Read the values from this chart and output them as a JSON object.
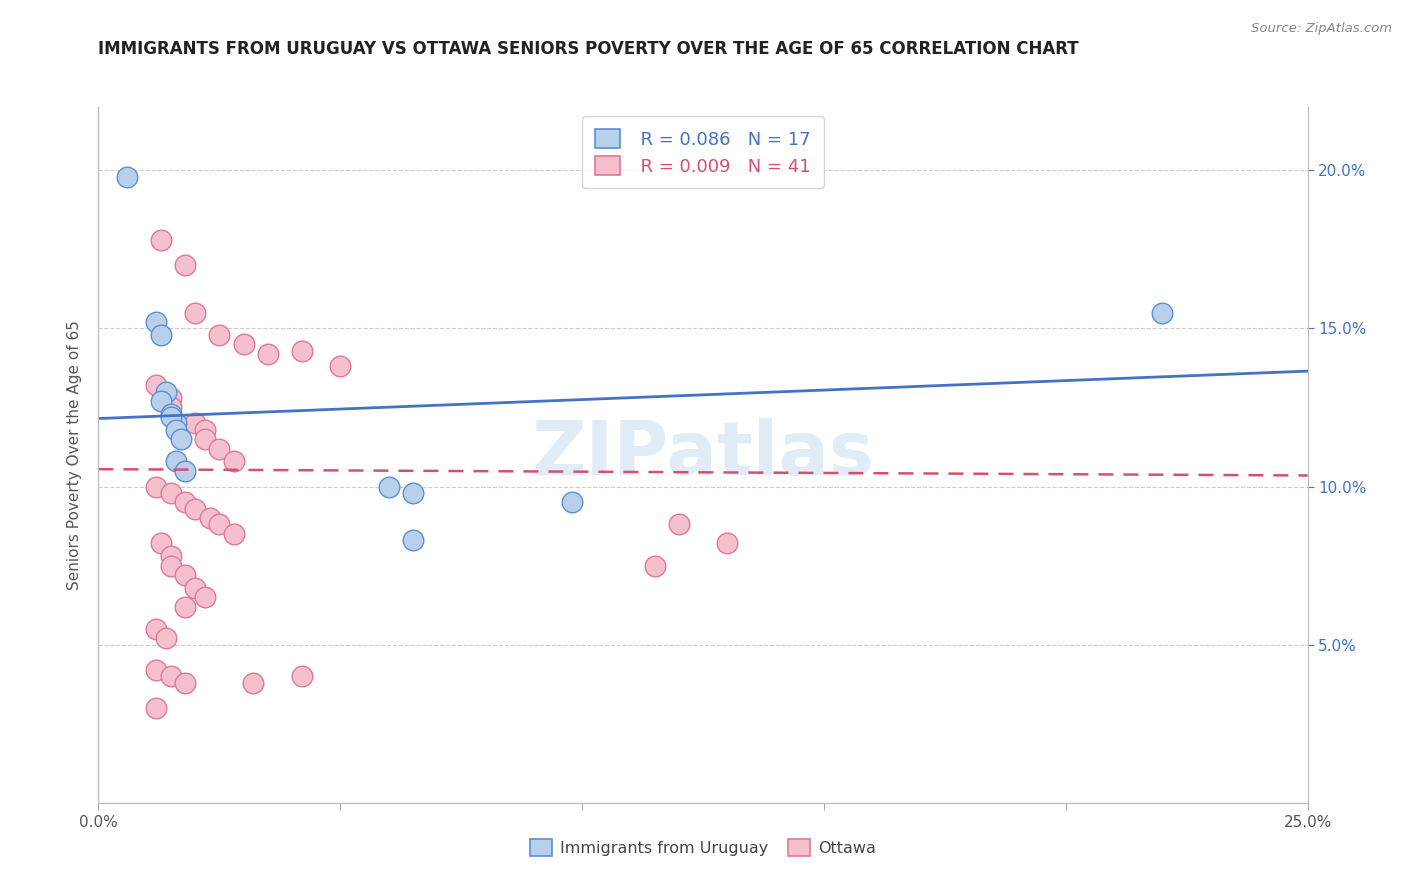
{
  "title": "IMMIGRANTS FROM URUGUAY VS OTTAWA SENIORS POVERTY OVER THE AGE OF 65 CORRELATION CHART",
  "source_text": "Source: ZipAtlas.com",
  "ylabel": "Seniors Poverty Over the Age of 65",
  "xlim": [
    0.0,
    0.25
  ],
  "ylim": [
    0.0,
    0.22
  ],
  "legend_blue_r": "R = 0.086",
  "legend_blue_n": "N = 17",
  "legend_pink_r": "R = 0.009",
  "legend_pink_n": "N = 41",
  "watermark": "ZIPatlas",
  "blue_fill": "#b8d0ea",
  "pink_fill": "#f5c0ce",
  "blue_edge": "#5b8fd4",
  "pink_edge": "#e07898",
  "blue_line": "#4472c4",
  "pink_line": "#d45070",
  "grid_color": "#cccccc",
  "blue_trend": [
    0.0,
    0.1215,
    0.25,
    0.1365
  ],
  "pink_trend": [
    0.0,
    0.1055,
    0.25,
    0.1035
  ],
  "blue_scatter": [
    [
      0.006,
      0.198
    ],
    [
      0.012,
      0.152
    ],
    [
      0.013,
      0.148
    ],
    [
      0.014,
      0.13
    ],
    [
      0.013,
      0.127
    ],
    [
      0.015,
      0.123
    ],
    [
      0.016,
      0.12
    ],
    [
      0.015,
      0.122
    ],
    [
      0.016,
      0.118
    ],
    [
      0.017,
      0.115
    ],
    [
      0.016,
      0.108
    ],
    [
      0.018,
      0.105
    ],
    [
      0.06,
      0.1
    ],
    [
      0.065,
      0.098
    ],
    [
      0.065,
      0.083
    ],
    [
      0.098,
      0.095
    ],
    [
      0.22,
      0.155
    ]
  ],
  "pink_scatter": [
    [
      0.013,
      0.178
    ],
    [
      0.018,
      0.17
    ],
    [
      0.02,
      0.155
    ],
    [
      0.025,
      0.148
    ],
    [
      0.03,
      0.145
    ],
    [
      0.035,
      0.142
    ],
    [
      0.042,
      0.143
    ],
    [
      0.05,
      0.138
    ],
    [
      0.012,
      0.132
    ],
    [
      0.015,
      0.128
    ],
    [
      0.015,
      0.125
    ],
    [
      0.02,
      0.12
    ],
    [
      0.022,
      0.118
    ],
    [
      0.022,
      0.115
    ],
    [
      0.025,
      0.112
    ],
    [
      0.028,
      0.108
    ],
    [
      0.012,
      0.1
    ],
    [
      0.015,
      0.098
    ],
    [
      0.018,
      0.095
    ],
    [
      0.02,
      0.093
    ],
    [
      0.023,
      0.09
    ],
    [
      0.025,
      0.088
    ],
    [
      0.028,
      0.085
    ],
    [
      0.013,
      0.082
    ],
    [
      0.015,
      0.078
    ],
    [
      0.015,
      0.075
    ],
    [
      0.018,
      0.072
    ],
    [
      0.02,
      0.068
    ],
    [
      0.022,
      0.065
    ],
    [
      0.018,
      0.062
    ],
    [
      0.012,
      0.055
    ],
    [
      0.014,
      0.052
    ],
    [
      0.012,
      0.042
    ],
    [
      0.015,
      0.04
    ],
    [
      0.018,
      0.038
    ],
    [
      0.012,
      0.03
    ],
    [
      0.042,
      0.04
    ],
    [
      0.032,
      0.038
    ],
    [
      0.12,
      0.088
    ],
    [
      0.13,
      0.082
    ],
    [
      0.115,
      0.075
    ]
  ]
}
